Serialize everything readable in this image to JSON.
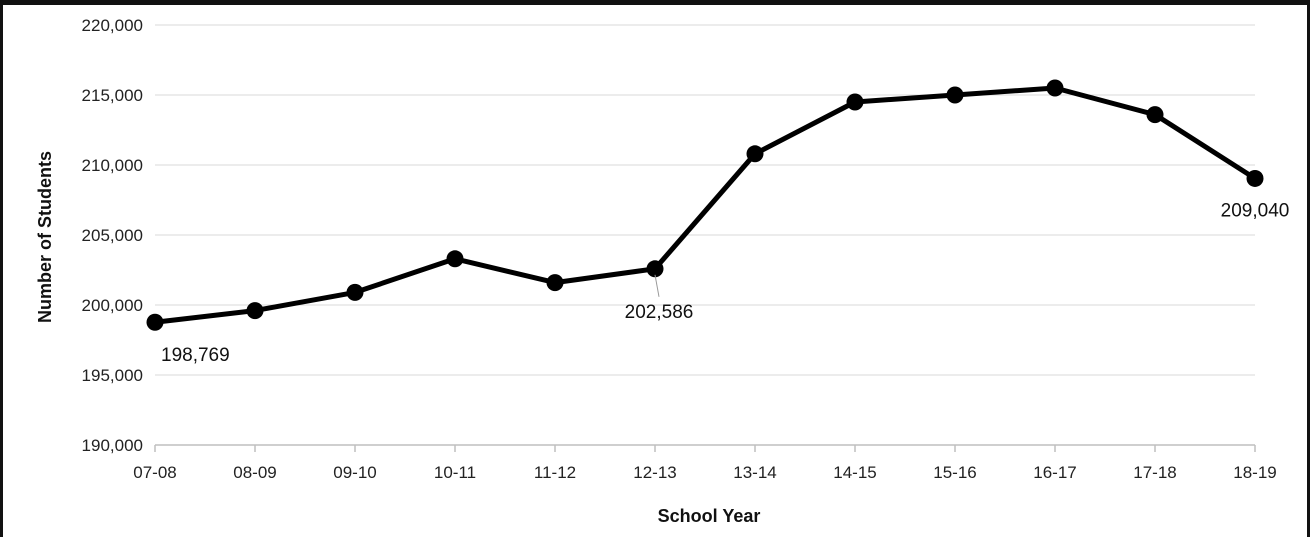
{
  "chart_data": {
    "type": "line",
    "xlabel": "School Year",
    "ylabel": "Number of Students",
    "ylim": [
      190000,
      220000
    ],
    "y_ticks": [
      190000,
      195000,
      200000,
      205000,
      210000,
      215000,
      220000
    ],
    "y_tick_labels": [
      "190,000",
      "195,000",
      "200,000",
      "205,000",
      "210,000",
      "215,000",
      "220,000"
    ],
    "categories": [
      "07-08",
      "08-09",
      "09-10",
      "10-11",
      "11-12",
      "12-13",
      "13-14",
      "14-15",
      "15-16",
      "16-17",
      "17-18",
      "18-19"
    ],
    "series": [
      {
        "values": [
          198769,
          199600,
          200900,
          203300,
          201600,
          202586,
          210800,
          214500,
          215000,
          215500,
          213600,
          209040
        ],
        "color": "#000000"
      }
    ],
    "data_labels": [
      {
        "index": 0,
        "text": "198,769"
      },
      {
        "index": 5,
        "text": "202,586"
      },
      {
        "index": 11,
        "text": "209,040"
      }
    ],
    "grid": true,
    "legend": "none"
  }
}
